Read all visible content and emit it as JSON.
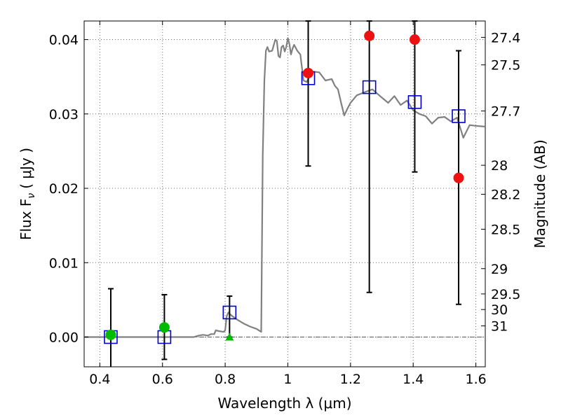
{
  "chart_data": {
    "type": "scatter",
    "xlabel": "Wavelength  λ (μm)",
    "ylabel_left": "Flux  F",
    "ylabel_left_sub": "ν",
    "ylabel_left_units": "( μJy )",
    "ylabel_right": "Magnitude (AB)",
    "xlim": [
      0.35,
      1.63
    ],
    "ylim": [
      -0.004,
      0.0425
    ],
    "grid": true,
    "x_ticks": [
      0.4,
      0.6,
      0.8,
      1.0,
      1.2,
      1.4,
      1.6
    ],
    "x_tick_labels": [
      "0.4",
      "0.6",
      "0.8",
      "1",
      "1.2",
      "1.4",
      "1.6"
    ],
    "y_ticks": [
      0.0,
      0.01,
      0.02,
      0.03,
      0.04
    ],
    "y_tick_labels": [
      "0.00",
      "0.01",
      "0.02",
      "0.03",
      "0.04"
    ],
    "right_ticks": [
      {
        "label": "27.4",
        "flux": 0.0403
      },
      {
        "label": "27.5",
        "flux": 0.0366
      },
      {
        "label": "27.7",
        "flux": 0.0304
      },
      {
        "label": "28",
        "flux": 0.0231
      },
      {
        "label": "28.2",
        "flux": 0.0192
      },
      {
        "label": "28.5",
        "flux": 0.0145
      },
      {
        "label": "29",
        "flux": 0.0092
      },
      {
        "label": "29.5",
        "flux": 0.0058
      },
      {
        "label": "30",
        "flux": 0.0037
      },
      {
        "label": "31",
        "flux": 0.0015
      }
    ],
    "series": [
      {
        "kind": "line",
        "color": "#808080",
        "x": [
          0.35,
          0.7,
          0.715,
          0.73,
          0.745,
          0.755,
          0.765,
          0.77,
          0.78,
          0.795,
          0.8,
          0.805,
          0.81,
          0.82,
          0.84,
          0.86,
          0.88,
          0.9,
          0.915,
          0.92,
          0.925,
          0.93,
          0.935,
          0.94,
          0.95,
          0.96,
          0.965,
          0.97,
          0.975,
          0.98,
          0.985,
          0.99,
          0.995,
          1.0,
          1.005,
          1.01,
          1.015,
          1.02,
          1.03,
          1.04,
          1.05,
          1.06,
          1.07,
          1.08,
          1.1,
          1.12,
          1.14,
          1.15,
          1.16,
          1.17,
          1.18,
          1.19,
          1.2,
          1.22,
          1.25,
          1.27,
          1.3,
          1.32,
          1.34,
          1.36,
          1.38,
          1.4,
          1.42,
          1.44,
          1.46,
          1.48,
          1.5,
          1.52,
          1.54,
          1.56,
          1.58,
          1.6,
          1.63
        ],
        "y": [
          0.0,
          0.0,
          0.0002,
          0.0003,
          0.0002,
          0.0004,
          0.0004,
          0.0009,
          0.0008,
          0.0007,
          0.0009,
          0.0028,
          0.0033,
          0.0029,
          0.0023,
          0.0018,
          0.0014,
          0.0011,
          0.0007,
          0.0245,
          0.0345,
          0.0385,
          0.039,
          0.0384,
          0.0385,
          0.04,
          0.0398,
          0.0378,
          0.0376,
          0.039,
          0.0392,
          0.0384,
          0.039,
          0.0402,
          0.0394,
          0.038,
          0.0388,
          0.0393,
          0.0385,
          0.038,
          0.0345,
          0.0343,
          0.0351,
          0.0357,
          0.0356,
          0.0345,
          0.0347,
          0.0338,
          0.0333,
          0.0315,
          0.0298,
          0.0307,
          0.0315,
          0.0325,
          0.033,
          0.0333,
          0.0322,
          0.0315,
          0.0324,
          0.0312,
          0.0318,
          0.0305,
          0.03,
          0.0297,
          0.0287,
          0.0295,
          0.0296,
          0.029,
          0.0295,
          0.0268,
          0.0285,
          0.0284,
          0.0283
        ]
      },
      {
        "kind": "squares",
        "color": "#0000cc",
        "x": [
          0.435,
          0.606,
          0.814,
          1.065,
          1.26,
          1.405,
          1.545
        ],
        "y": [
          0.0,
          0.0,
          0.0033,
          0.0348,
          0.0336,
          0.0316,
          0.0297
        ]
      },
      {
        "kind": "points",
        "color": "#ee1111",
        "x": [
          1.065,
          1.26,
          1.405,
          1.545
        ],
        "y": [
          0.0355,
          0.0405,
          0.04,
          0.0214
        ],
        "yerr_low": [
          0.023,
          0.006,
          0.0222,
          0.0044
        ],
        "yerr_high": [
          0.0425,
          0.0425,
          0.0425,
          0.0385
        ]
      },
      {
        "kind": "points",
        "color": "#00bb00",
        "x": [
          0.435,
          0.606
        ],
        "y": [
          0.0003,
          0.0013
        ],
        "yerr_low": [
          -0.0042,
          -0.003
        ],
        "yerr_high": [
          0.0065,
          0.0057
        ]
      },
      {
        "kind": "upper-limit",
        "color": "#00bb00",
        "x": [
          0.814
        ],
        "y": [
          0.0
        ],
        "yerr_low": [
          0.0
        ],
        "yerr_high": [
          0.0055
        ]
      }
    ]
  }
}
